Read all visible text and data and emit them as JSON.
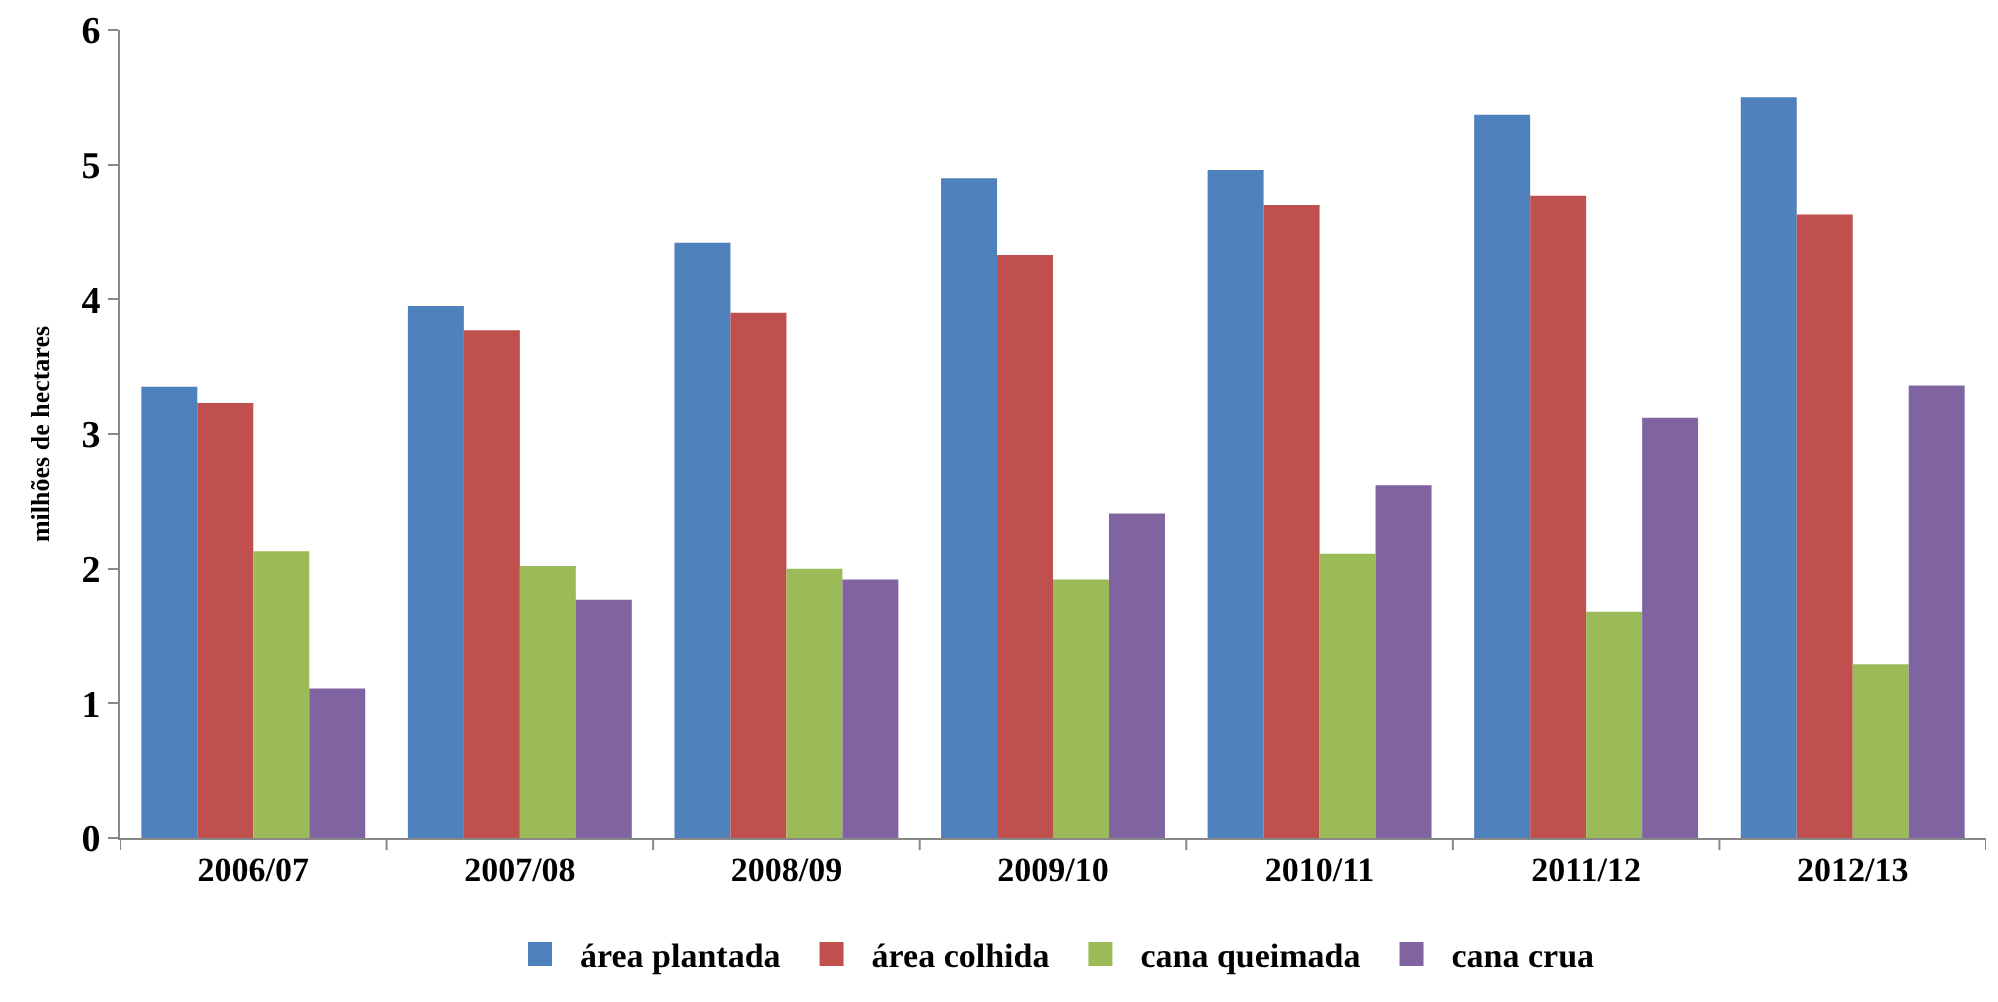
{
  "chart_data": {
    "type": "bar",
    "ylabel": "milhões de hectares",
    "categories": [
      "2006/07",
      "2007/08",
      "2008/09",
      "2009/10",
      "2010/11",
      "2011/12",
      "2012/13"
    ],
    "series": [
      {
        "name": "área plantada",
        "color": "#4f81bd",
        "values": [
          3.35,
          3.95,
          4.42,
          4.9,
          4.96,
          5.37,
          5.5
        ]
      },
      {
        "name": "área colhida",
        "color": "#c0504d",
        "values": [
          3.23,
          3.77,
          3.9,
          4.33,
          4.7,
          4.77,
          4.63
        ]
      },
      {
        "name": "cana queimada",
        "color": "#9bbb59",
        "values": [
          2.13,
          2.02,
          2.0,
          1.92,
          2.11,
          1.68,
          1.29
        ]
      },
      {
        "name": "cana crua",
        "color": "#8064a2",
        "values": [
          1.11,
          1.77,
          1.92,
          2.41,
          2.62,
          3.12,
          3.36
        ]
      }
    ],
    "ylim": [
      0,
      6
    ],
    "yticks": [
      0,
      1,
      2,
      3,
      4,
      5,
      6
    ],
    "grid": false,
    "legend": "bottom"
  }
}
